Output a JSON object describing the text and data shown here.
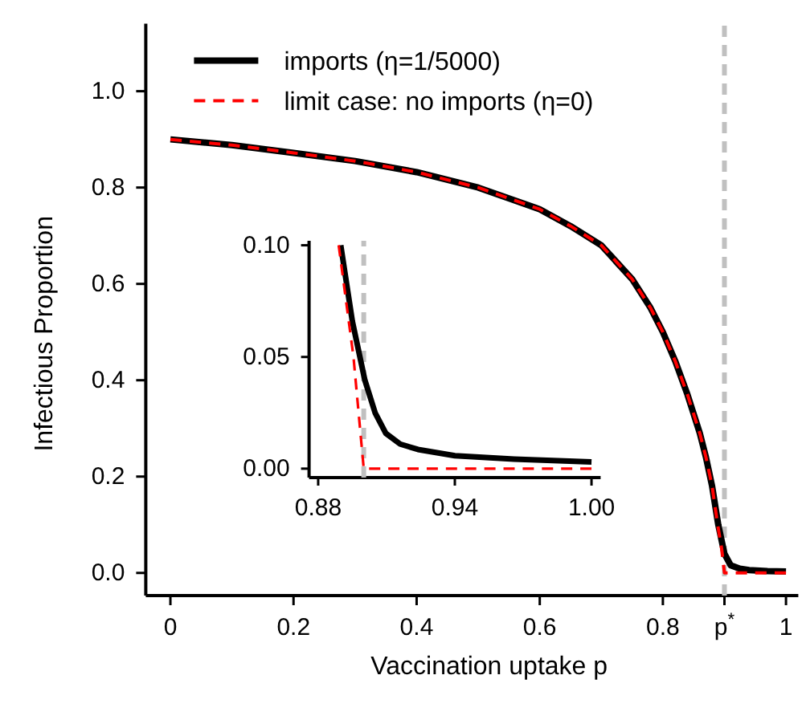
{
  "chart_data": [
    {
      "type": "line",
      "xlabel": "Vaccination uptake p",
      "ylabel": "Infectious Proportion",
      "xlim": [
        -0.04,
        1.02
      ],
      "ylim": [
        -0.047,
        1.14
      ],
      "xticks": [
        0,
        0.2,
        0.4,
        0.6,
        0.8,
        {
          "value": 0.9,
          "label": "p$^{*}$"
        },
        1
      ],
      "yticks": [
        {
          "value": 0,
          "label": "0.0"
        },
        {
          "value": 0.2,
          "label": "0.2"
        },
        {
          "value": 0.4,
          "label": "0.4"
        },
        {
          "value": 0.6,
          "label": "0.6"
        },
        {
          "value": 0.8,
          "label": "0.8"
        },
        {
          "value": 1,
          "label": "1.0"
        }
      ],
      "legend": "top left",
      "grid": false,
      "marker": "none",
      "ref_lines": [
        {
          "axis": "x",
          "value": 0.9,
          "color": "#c0c0c0",
          "line_style": "dashed"
        }
      ],
      "series": [
        {
          "name": "imports (η=1/5000)",
          "color": "#000000",
          "line_style": "solid",
          "x": [
            0,
            0.1,
            0.2,
            0.3,
            0.4,
            0.5,
            0.6,
            0.65,
            0.7,
            0.75,
            0.78,
            0.8,
            0.82,
            0.84,
            0.86,
            0.87,
            0.88,
            0.89,
            0.9,
            0.91,
            0.925,
            0.94,
            0.97,
            1
          ],
          "values": [
            0.9,
            0.888,
            0.872,
            0.855,
            0.832,
            0.8,
            0.755,
            0.72,
            0.68,
            0.61,
            0.55,
            0.5,
            0.44,
            0.37,
            0.29,
            0.24,
            0.18,
            0.1,
            0.04,
            0.016,
            0.009,
            0.006,
            0.004,
            0.003
          ]
        },
        {
          "name": "limit case: no imports (η=0)",
          "color": "#ff0000",
          "line_style": "dashed",
          "x": [
            0,
            0.1,
            0.2,
            0.3,
            0.4,
            0.5,
            0.6,
            0.65,
            0.7,
            0.75,
            0.78,
            0.8,
            0.82,
            0.84,
            0.86,
            0.87,
            0.88,
            0.889,
            0.8955,
            0.9,
            1
          ],
          "values": [
            0.9,
            0.888,
            0.872,
            0.855,
            0.832,
            0.8,
            0.755,
            0.72,
            0.68,
            0.61,
            0.55,
            0.5,
            0.44,
            0.37,
            0.29,
            0.24,
            0.18,
            0.1,
            0.05,
            0,
            0
          ]
        }
      ]
    },
    {
      "type": "line",
      "xlim": [
        0.876,
        1.004
      ],
      "ylim": [
        -0.004,
        0.102
      ],
      "xticks": [
        0.88,
        0.94,
        {
          "value": 1,
          "label": "1.00"
        }
      ],
      "yticks": [
        {
          "value": 0,
          "label": "0.00"
        },
        0.05,
        {
          "value": 0.1,
          "label": "0.10"
        }
      ],
      "grid": false,
      "marker": "none",
      "ref_lines": [
        {
          "axis": "x",
          "value": 0.9,
          "color": "#c0c0c0",
          "line_style": "dashed"
        }
      ],
      "series": [
        {
          "color": "#000000",
          "line_style": "solid",
          "x": [
            0.8899,
            0.895,
            0.9005,
            0.905,
            0.9097,
            0.916,
            0.9238,
            0.94,
            0.966,
            1
          ],
          "values": [
            0.1,
            0.066,
            0.0396,
            0.025,
            0.0158,
            0.011,
            0.0086,
            0.0058,
            0.0043,
            0.003
          ]
        },
        {
          "color": "#ff0000",
          "line_style": "dashed",
          "x": [
            0.889,
            0.8955,
            0.9,
            1
          ],
          "values": [
            0.1,
            0.05,
            0,
            0
          ]
        }
      ]
    }
  ]
}
